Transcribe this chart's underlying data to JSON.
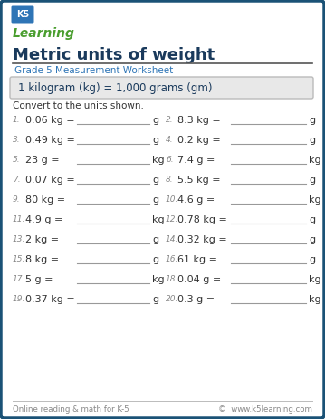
{
  "title": "Metric units of weight",
  "subtitle": "Grade 5 Measurement Worksheet",
  "formula_box": "1 kilogram (kg) = 1,000 grams (gm)",
  "instruction": "Convert to the units shown.",
  "problems": [
    {
      "num": "1.",
      "left": "0.06 kg =",
      "unit": "g"
    },
    {
      "num": "2.",
      "left": "8.3 kg =",
      "unit": "g"
    },
    {
      "num": "3.",
      "left": "0.49 kg =",
      "unit": "g"
    },
    {
      "num": "4.",
      "left": "0.2 kg =",
      "unit": "g"
    },
    {
      "num": "5.",
      "left": "23 g =",
      "unit": "kg"
    },
    {
      "num": "6.",
      "left": "7.4 g =",
      "unit": "kg"
    },
    {
      "num": "7.",
      "left": "0.07 kg =",
      "unit": "g"
    },
    {
      "num": "8.",
      "left": "5.5 kg =",
      "unit": "g"
    },
    {
      "num": "9.",
      "left": "80 kg =",
      "unit": "g"
    },
    {
      "num": "10.",
      "left": "4.6 g =",
      "unit": "kg"
    },
    {
      "num": "11.",
      "left": "4.9 g =",
      "unit": "kg"
    },
    {
      "num": "12.",
      "left": "0.78 kg =",
      "unit": "g"
    },
    {
      "num": "13.",
      "left": "2 kg =",
      "unit": "g"
    },
    {
      "num": "14.",
      "left": "0.32 kg =",
      "unit": "g"
    },
    {
      "num": "15.",
      "left": "8 kg =",
      "unit": "g"
    },
    {
      "num": "16.",
      "left": "61 kg =",
      "unit": "g"
    },
    {
      "num": "17.",
      "left": "5 g =",
      "unit": "kg"
    },
    {
      "num": "18.",
      "left": "0.04 g =",
      "unit": "kg"
    },
    {
      "num": "19.",
      "left": "0.37 kg =",
      "unit": "g"
    },
    {
      "num": "20.",
      "left": "0.3 g =",
      "unit": "kg"
    }
  ],
  "footer_left": "Online reading & math for K-5",
  "footer_right": "©  www.k5learning.com",
  "border_color": "#1a5276",
  "title_color": "#1a3a5c",
  "subtitle_color": "#2e75b6",
  "formula_color": "#1a3a5c",
  "formula_bg": "#e8e8e8",
  "problem_color": "#333333",
  "num_color": "#888888",
  "footer_color": "#888888",
  "bg_color": "#ffffff",
  "outer_border_color": "#1a5276",
  "logo_green": "#4a9e2f",
  "logo_blue": "#2e75b6"
}
